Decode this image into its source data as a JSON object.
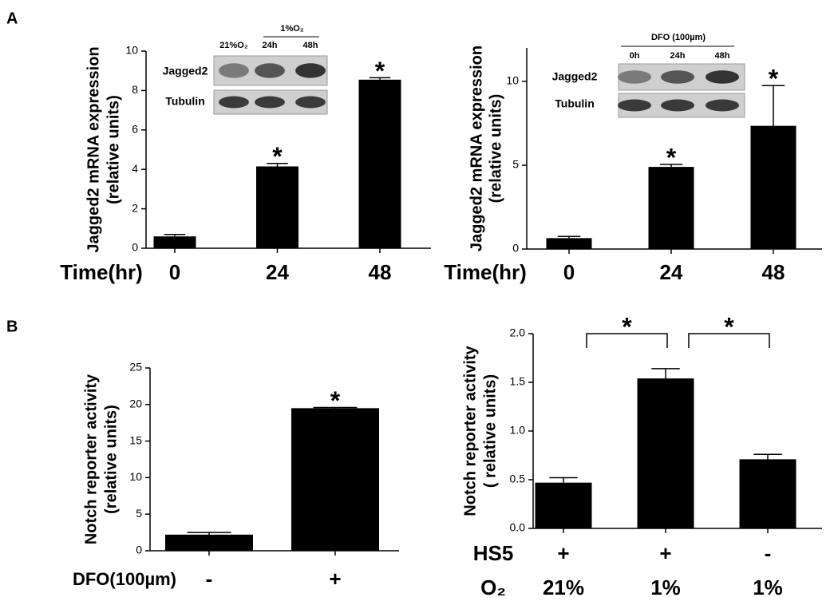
{
  "panel_labels": [
    "A",
    "B"
  ],
  "chart_data": [
    {
      "type": "bar",
      "ylabel": [
        "Jagged2 mRNA expression",
        "(relative units)"
      ],
      "xlabel": "Time(hr)",
      "categories": [
        "0",
        "24",
        "48"
      ],
      "values": [
        0.6,
        4.15,
        8.55
      ],
      "errors": [
        0.1,
        0.15,
        0.1
      ],
      "annotations": [
        null,
        "*",
        "*"
      ],
      "color": "#000000",
      "ylim": [
        0,
        10
      ],
      "yticks": [
        0,
        2,
        4,
        6,
        8,
        10
      ],
      "inset": {
        "header": "1%O₂",
        "lanes": [
          "21%O₂",
          "24h",
          "48h"
        ],
        "rows": [
          "Jagged2",
          "Tubulin"
        ]
      }
    },
    {
      "type": "bar",
      "ylabel": [
        "Jagged2 mRNA expression",
        "(relative units)"
      ],
      "xlabel": "Time(hr)",
      "categories": [
        "0",
        "24",
        "48"
      ],
      "values": [
        0.65,
        4.9,
        7.35
      ],
      "errors": [
        0.1,
        0.15,
        2.4
      ],
      "annotations": [
        null,
        "*",
        "*"
      ],
      "color": "#000000",
      "ylim": [
        0,
        12
      ],
      "yticks": [
        0,
        5,
        10
      ],
      "inset": {
        "header": "DFO (100µm)",
        "lanes": [
          "0h",
          "24h",
          "48h"
        ],
        "rows": [
          "Jagged2",
          "Tubulin"
        ]
      }
    },
    {
      "type": "bar",
      "ylabel": [
        "Notch reporter activity",
        "(relative units)"
      ],
      "xlabel": "DFO(100µm)",
      "categories": [
        "-",
        "+"
      ],
      "values": [
        2.2,
        19.5
      ],
      "errors": [
        0.3,
        0.1
      ],
      "annotations": [
        null,
        "*"
      ],
      "color": "#000000",
      "ylim": [
        0,
        25
      ],
      "yticks": [
        0,
        5,
        10,
        15,
        20,
        25
      ]
    },
    {
      "type": "bar",
      "ylabel": [
        "Notch reporter activity",
        "( relative units)"
      ],
      "category_rows": [
        {
          "name": "HS5",
          "labels": [
            "+",
            "+",
            "-"
          ]
        },
        {
          "name": "O₂",
          "labels": [
            "21%",
            "1%",
            "1%"
          ]
        }
      ],
      "values": [
        0.47,
        1.54,
        0.71
      ],
      "errors": [
        0.05,
        0.1,
        0.05
      ],
      "bracket_labels": [
        "*",
        "*"
      ],
      "color": "#000000",
      "ylim": [
        0,
        2
      ],
      "yticks": [
        {
          "value": 0,
          "label": "0.0"
        },
        0.5,
        {
          "value": 1,
          "label": "1.0"
        },
        1.5,
        {
          "value": 2,
          "label": "2.0"
        }
      ]
    }
  ]
}
